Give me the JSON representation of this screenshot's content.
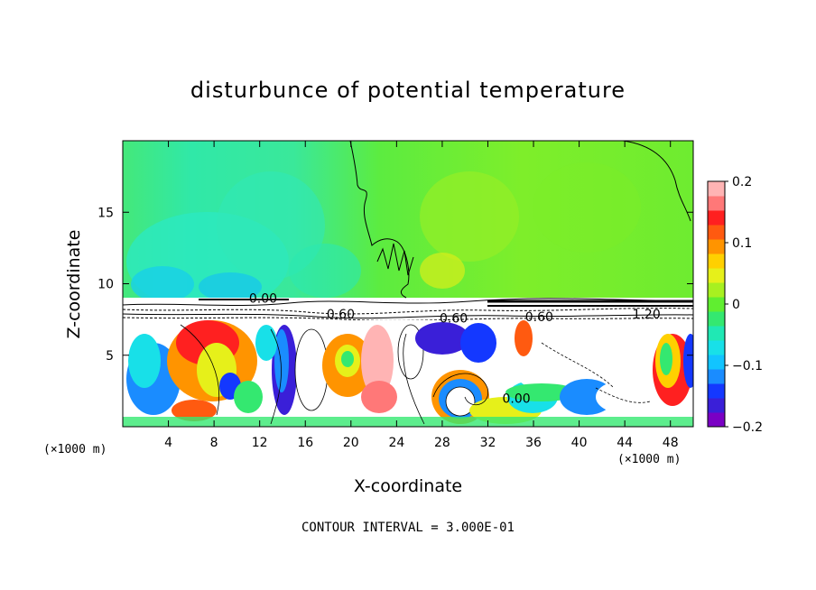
{
  "chart_data": {
    "type": "heatmap",
    "title": "disturbunce of potential temperature",
    "xlabel": "X-coordinate",
    "ylabel": "Z-coordinate",
    "x_unit": "(×1000 m)",
    "footer": "CONTOUR INTERVAL = 3.000E-01",
    "xlim": [
      0,
      50
    ],
    "ylim": [
      0,
      20
    ],
    "xticks": [
      4,
      8,
      12,
      16,
      20,
      24,
      28,
      32,
      36,
      40,
      44,
      48
    ],
    "yticks": [
      5,
      10,
      15
    ],
    "colorbar": {
      "range": [
        -0.2,
        0.2
      ],
      "ticks": [
        "0.2",
        "0.1",
        "0",
        "−0.1",
        "−0.2"
      ],
      "colors": [
        "#7a00c4",
        "#3a1fd8",
        "#1438ff",
        "#1a8cff",
        "#12c4ff",
        "#18e0e8",
        "#20e8b4",
        "#34e870",
        "#60ee30",
        "#a8f020",
        "#e6f01a",
        "#ffd000",
        "#ff9400",
        "#ff5a10",
        "#ff2020",
        "#ff7878",
        "#ffb4b4"
      ]
    },
    "contour_labels": [
      {
        "text": "0.00",
        "x": 12.3,
        "z": 9.0
      },
      {
        "text": "0.60",
        "x": 19.1,
        "z": 7.9
      },
      {
        "text": "0.60",
        "x": 29.0,
        "z": 7.6
      },
      {
        "text": "0.60",
        "x": 36.5,
        "z": 7.7
      },
      {
        "text": "1.20",
        "x": 45.9,
        "z": 7.9
      },
      {
        "text": "0.00",
        "x": 34.5,
        "z": 2.0
      }
    ]
  }
}
